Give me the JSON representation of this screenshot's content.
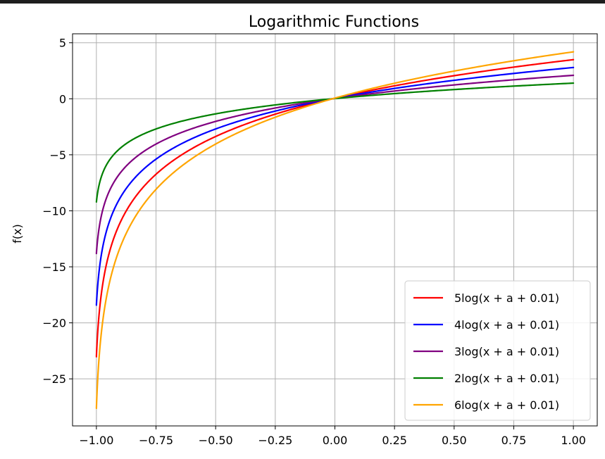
{
  "chart_data": {
    "type": "line",
    "title": "Logarithmic Functions",
    "xlabel": "",
    "ylabel": "f(x)",
    "xlim": [
      -1.1,
      1.1
    ],
    "ylim": [
      -29.2,
      5.8
    ],
    "grid": true,
    "legend_position": "lower-right",
    "x_ticks": [
      -1.0,
      -0.75,
      -0.5,
      -0.25,
      0.0,
      0.25,
      0.5,
      0.75,
      1.0
    ],
    "x_tick_labels": [
      "−1.00",
      "−0.75",
      "−0.50",
      "−0.25",
      "0.00",
      "0.25",
      "0.50",
      "0.75",
      "1.00"
    ],
    "y_ticks": [
      5,
      0,
      -5,
      -10,
      -15,
      -20,
      -25
    ],
    "y_tick_labels": [
      "5",
      "0",
      "−5",
      "−10",
      "−15",
      "−20",
      "−25"
    ],
    "function_offset_a": 1,
    "x_range": [
      -1.0,
      1.0
    ],
    "series": [
      {
        "name": "5log(x + a + 0.01)",
        "coefficient": 5,
        "color": "#ff0000",
        "y_start": -23.0,
        "y_end": 3.5
      },
      {
        "name": "4log(x + a + 0.01)",
        "coefficient": 4,
        "color": "#0000ff",
        "y_start": -18.4,
        "y_end": 2.8
      },
      {
        "name": "3log(x + a + 0.01)",
        "coefficient": 3,
        "color": "#800080",
        "y_start": -13.8,
        "y_end": 2.1
      },
      {
        "name": "2log(x + a + 0.01)",
        "coefficient": 2,
        "color": "#008000",
        "y_start": -9.2,
        "y_end": 1.4
      },
      {
        "name": "6log(x + a + 0.01)",
        "coefficient": 6,
        "color": "#ffa500",
        "y_start": -27.6,
        "y_end": 4.2
      }
    ]
  }
}
